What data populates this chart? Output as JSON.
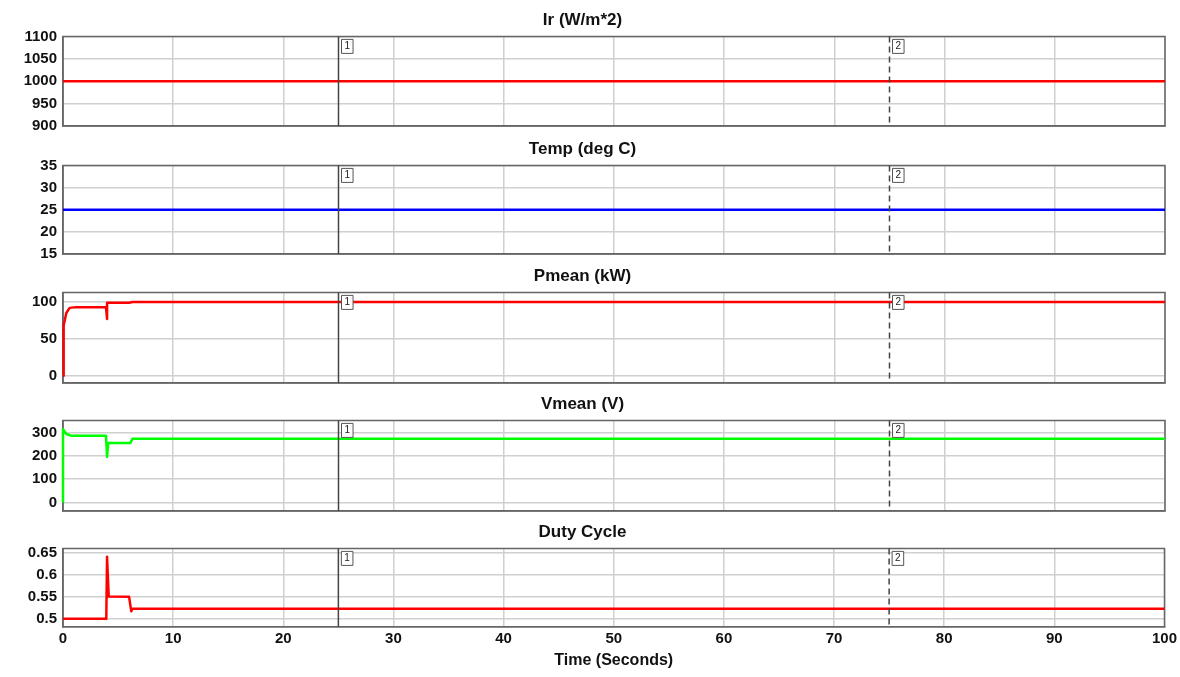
{
  "chart_data": [
    {
      "type": "line",
      "title": "Ir (W/m*2)",
      "x": [
        0,
        100
      ],
      "values": [
        1000,
        1000
      ],
      "color": "#ff0000",
      "xlim": [
        0,
        100
      ],
      "xticks": [
        0,
        10,
        20,
        30,
        40,
        50,
        60,
        70,
        80,
        90,
        100
      ],
      "ylim": [
        900,
        1100
      ],
      "yticks": [
        900,
        950,
        1000,
        1050,
        1100
      ],
      "grid": true,
      "tick_labels": "y",
      "ref_lines": [
        {
          "axis": "x",
          "value": 25,
          "line_style": "solid"
        },
        {
          "axis": "x",
          "value": 75,
          "line_style": "dashed"
        }
      ],
      "annotations": [
        "1",
        "2"
      ]
    },
    {
      "type": "line",
      "title": "Temp (deg C)",
      "x": [
        0,
        100
      ],
      "values": [
        25,
        25
      ],
      "color": "#0000ff",
      "xlim": [
        0,
        100
      ],
      "xticks": [
        0,
        10,
        20,
        30,
        40,
        50,
        60,
        70,
        80,
        90,
        100
      ],
      "ylim": [
        15,
        35
      ],
      "yticks": [
        15,
        20,
        25,
        30,
        35
      ],
      "grid": true,
      "tick_labels": "y",
      "ref_lines": [
        {
          "axis": "x",
          "value": 25,
          "line_style": "solid"
        },
        {
          "axis": "x",
          "value": 75,
          "line_style": "dashed"
        }
      ],
      "annotations": [
        "1",
        "2"
      ]
    },
    {
      "type": "line",
      "title": "Pmean (kW)",
      "x": [
        0,
        0.06,
        0.3,
        0.6,
        1.2,
        3.9,
        4.0,
        4.0,
        4.15,
        6.0,
        6.3,
        100
      ],
      "values": [
        0,
        68,
        85,
        92,
        93,
        93,
        77,
        99,
        99,
        99,
        100,
        100
      ],
      "color": "#ff0000",
      "xlim": [
        0,
        100
      ],
      "xticks": [
        0,
        10,
        20,
        30,
        40,
        50,
        60,
        70,
        80,
        90,
        100
      ],
      "ylim": [
        -10,
        113
      ],
      "yticks": [
        0,
        50,
        100
      ],
      "grid": true,
      "tick_labels": "y",
      "ref_lines": [
        {
          "axis": "x",
          "value": 25,
          "line_style": "solid"
        },
        {
          "axis": "x",
          "value": 75,
          "line_style": "dashed"
        }
      ],
      "annotations": [
        "1",
        "2"
      ]
    },
    {
      "type": "line",
      "title": "Vmean (V)",
      "x": [
        0,
        0,
        0.3,
        0.8,
        3.9,
        4.0,
        4.1,
        6.1,
        6.3,
        100
      ],
      "values": [
        0,
        314,
        294,
        286,
        286,
        196,
        255,
        255,
        273,
        273
      ],
      "color": "#00ff00",
      "xlim": [
        0,
        100
      ],
      "xticks": [
        0,
        10,
        20,
        30,
        40,
        50,
        60,
        70,
        80,
        90,
        100
      ],
      "ylim": [
        -36,
        352
      ],
      "yticks": [
        0,
        100,
        200,
        300
      ],
      "grid": true,
      "tick_labels": "y",
      "ref_lines": [
        {
          "axis": "x",
          "value": 25,
          "line_style": "solid"
        },
        {
          "axis": "x",
          "value": 75,
          "line_style": "dashed"
        }
      ],
      "annotations": [
        "1",
        "2"
      ]
    },
    {
      "type": "line",
      "title": "Duty Cycle",
      "xlabel": "Time (Seconds)",
      "x": [
        0,
        3.93,
        4.0,
        4.15,
        6.0,
        6.2,
        6.3,
        100
      ],
      "values": [
        0.5,
        0.5,
        0.641,
        0.551,
        0.55,
        0.517,
        0.523,
        0.523
      ],
      "color": "#ff0000",
      "xlim": [
        0,
        100
      ],
      "xticks": [
        0,
        10,
        20,
        30,
        40,
        50,
        60,
        70,
        80,
        90,
        100
      ],
      "ylim": [
        0.482,
        0.66
      ],
      "yticks": [
        0.5,
        0.55,
        0.6,
        0.65
      ],
      "grid": true,
      "ref_lines": [
        {
          "axis": "x",
          "value": 25,
          "line_style": "solid"
        },
        {
          "axis": "x",
          "value": 75,
          "line_style": "dashed"
        }
      ],
      "annotations": [
        "1",
        "2"
      ]
    }
  ]
}
